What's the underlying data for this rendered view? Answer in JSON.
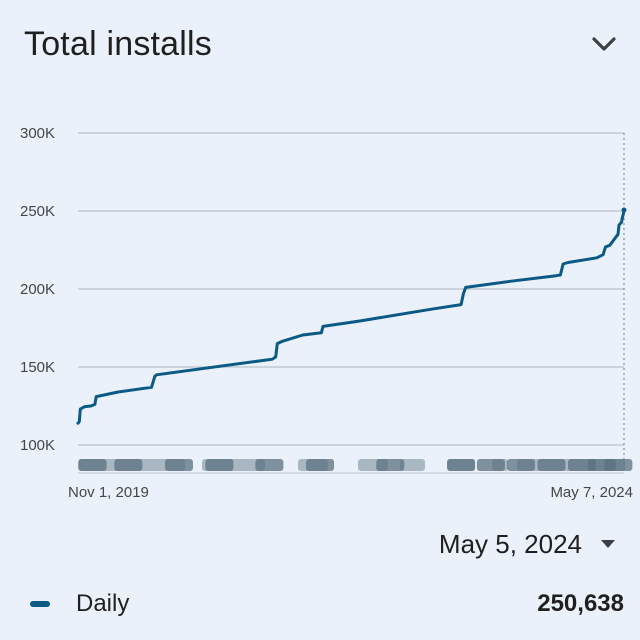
{
  "header": {
    "title": "Total installs",
    "collapse_icon": "chevron-down-icon"
  },
  "chart_data": {
    "type": "line",
    "y_ticks": [
      100000,
      150000,
      200000,
      250000,
      300000
    ],
    "y_tick_labels": [
      "100K",
      "150K",
      "200K",
      "250K",
      "300K"
    ],
    "ylim": [
      100000,
      300000
    ],
    "x_tick_labels": [
      "Nov 1, 2019",
      "May 7, 2024"
    ],
    "xlim": [
      "2019-11-01",
      "2024-05-07"
    ],
    "grid": true,
    "series": [
      {
        "name": "Daily",
        "color": "#0b5a85",
        "points": [
          [
            "2019-11-01",
            114000
          ],
          [
            "2019-11-05",
            115000
          ],
          [
            "2019-11-08",
            123000
          ],
          [
            "2019-11-20",
            124500
          ],
          [
            "2019-12-10",
            125000
          ],
          [
            "2019-12-22",
            126000
          ],
          [
            "2019-12-26",
            131000
          ],
          [
            "2020-03-01",
            134000
          ],
          [
            "2020-06-10",
            137000
          ],
          [
            "2020-06-20",
            144000
          ],
          [
            "2020-06-25",
            145000
          ],
          [
            "2021-06-10",
            155000
          ],
          [
            "2021-06-20",
            156500
          ],
          [
            "2021-06-25",
            165000
          ],
          [
            "2021-07-10",
            166500
          ],
          [
            "2021-09-10",
            170500
          ],
          [
            "2021-11-05",
            172000
          ],
          [
            "2021-11-10",
            176000
          ],
          [
            "2022-03-01",
            179500
          ],
          [
            "2022-10-01",
            187000
          ],
          [
            "2023-01-01",
            190000
          ],
          [
            "2023-01-08",
            197000
          ],
          [
            "2023-01-15",
            201000
          ],
          [
            "2023-06-01",
            205000
          ],
          [
            "2023-10-15",
            208500
          ],
          [
            "2023-10-28",
            209000
          ],
          [
            "2023-11-05",
            216000
          ],
          [
            "2023-11-20",
            217000
          ],
          [
            "2024-02-15",
            220000
          ],
          [
            "2024-03-05",
            222000
          ],
          [
            "2024-03-12",
            227000
          ],
          [
            "2024-03-25",
            228000
          ],
          [
            "2024-04-15",
            234000
          ],
          [
            "2024-04-19",
            235000
          ],
          [
            "2024-04-22",
            241000
          ],
          [
            "2024-04-26",
            242000
          ],
          [
            "2024-04-30",
            243000
          ],
          [
            "2024-05-01",
            245000
          ],
          [
            "2024-05-03",
            246500
          ],
          [
            "2024-05-05",
            248000
          ],
          [
            "2024-05-07",
            250638
          ]
        ]
      }
    ],
    "event_markers": {
      "color": "#5b7080",
      "dates": [
        "2019-12-15",
        "2020-04-01",
        "2020-09-01",
        "2021-01-01",
        "2021-06-01",
        "2021-11-01",
        "2022-06-01",
        "2023-01-01",
        "2023-04-01",
        "2023-07-01",
        "2023-10-01",
        "2024-01-01",
        "2024-03-01",
        "2024-04-20"
      ]
    },
    "hover_date": "2024-05-07"
  },
  "date_selector": {
    "label": "May 5, 2024",
    "icon": "dropdown-arrow-icon"
  },
  "legend": {
    "label": "Daily",
    "value": "250,638",
    "color": "#0b5a85"
  }
}
